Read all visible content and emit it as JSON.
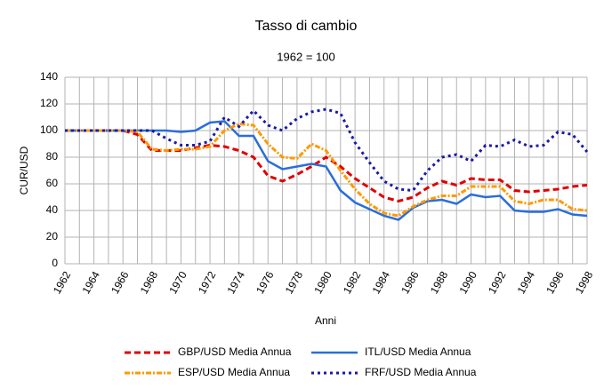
{
  "chart_data": {
    "type": "line",
    "title": "Tasso di cambio",
    "subtitle": "1962 = 100",
    "x_label": "Anni",
    "y_label": "CUR/USD",
    "categories": [
      "1962",
      null,
      "1964",
      null,
      "1966",
      null,
      "1968",
      null,
      "1970",
      null,
      "1972",
      null,
      "1974",
      null,
      "1976",
      null,
      "1978",
      null,
      "1980",
      null,
      "1982",
      null,
      "1984",
      null,
      "1986",
      null,
      "1988",
      null,
      "1990",
      null,
      "1992",
      null,
      "1994",
      null,
      "1996",
      null,
      "1998"
    ],
    "ylim": [
      0,
      140
    ],
    "yticks": [
      0,
      20,
      40,
      60,
      80,
      100,
      120,
      140
    ],
    "grid": true,
    "series": [
      {
        "name": "GBP/USD Media Annua",
        "color": "#e00000",
        "dash": "dashed",
        "values": [
          100,
          100,
          100,
          100,
          100,
          97,
          85,
          85,
          85,
          87,
          89,
          88,
          85,
          80,
          66,
          62,
          67,
          73,
          80,
          73,
          64,
          57,
          50,
          47,
          50,
          57,
          62,
          59,
          64,
          63,
          63,
          55,
          54,
          55,
          56,
          58,
          59
        ]
      },
      {
        "name": "ITL/USD Media Annua",
        "color": "#2a6ed9",
        "dash": "solid",
        "values": [
          100,
          100,
          100,
          100,
          100,
          100,
          100,
          100,
          99,
          100,
          106,
          107,
          96,
          96,
          77,
          71,
          73,
          75,
          73,
          55,
          46,
          41,
          36,
          33,
          42,
          47,
          48,
          45,
          52,
          50,
          51,
          40,
          39,
          39,
          41,
          37,
          36
        ]
      },
      {
        "name": "ESP/USD Media Annua",
        "color": "#ff9900",
        "dash": "dashdot",
        "values": [
          100,
          100,
          100,
          100,
          100,
          99,
          86,
          85,
          86,
          86,
          88,
          100,
          105,
          104,
          90,
          80,
          79,
          90,
          85,
          70,
          56,
          45,
          38,
          36,
          43,
          48,
          51,
          51,
          58,
          58,
          58,
          47,
          45,
          48,
          48,
          41,
          40
        ]
      },
      {
        "name": "FRF/USD Media Annua",
        "color": "#1a1aa6",
        "dash": "dotdash",
        "values": [
          100,
          100,
          100,
          100,
          100,
          100,
          100,
          94,
          89,
          89,
          92,
          110,
          103,
          115,
          104,
          100,
          109,
          114,
          116,
          113,
          91,
          76,
          62,
          56,
          55,
          70,
          80,
          82,
          77,
          89,
          88,
          93,
          88,
          89,
          99,
          97,
          84
        ]
      }
    ]
  }
}
